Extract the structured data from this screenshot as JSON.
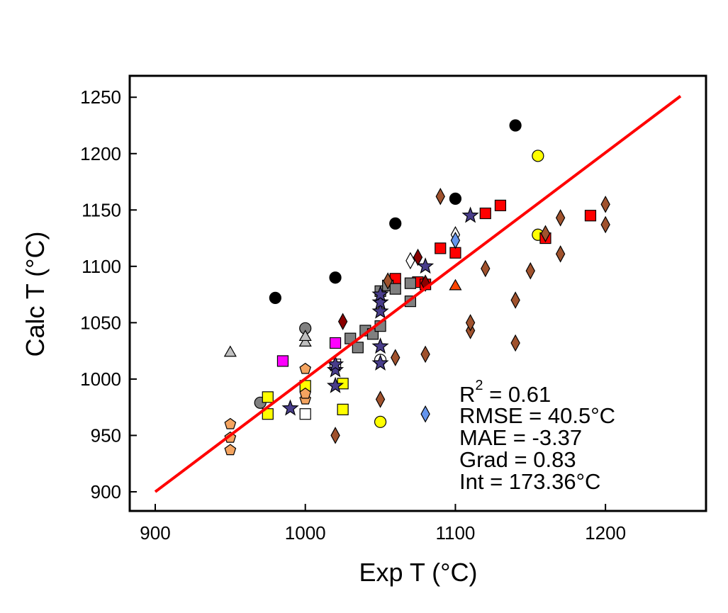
{
  "chart_data": {
    "type": "scatter",
    "title": "",
    "xlabel": "Exp T (°C)",
    "ylabel": "Calc T (°C)",
    "xlim": [
      883,
      1267
    ],
    "ylim": [
      883,
      1269
    ],
    "xticks": [
      900,
      1000,
      1100,
      1200
    ],
    "yticks": [
      900,
      950,
      1000,
      1050,
      1100,
      1150,
      1200,
      1250
    ],
    "grid": false,
    "legend": "none",
    "fit_line": {
      "color": "#ff0000",
      "x": [
        900,
        1250
      ],
      "y": [
        900,
        1251
      ]
    },
    "stats": {
      "r2_base": "R",
      "r2_sup": "2",
      "r2_value": " = 0.61",
      "rmse": "RMSE = 40.5°C",
      "mae": "MAE = -3.37",
      "grad": "Grad = 0.83",
      "int": "Int = 173.36°C"
    },
    "series": [
      {
        "marker": "circle",
        "fill": "#000000",
        "points": [
          [
            980,
            1072
          ],
          [
            1020,
            1090
          ],
          [
            1060,
            1138
          ],
          [
            1100,
            1160
          ],
          [
            1140,
            1225
          ]
        ]
      },
      {
        "marker": "circle",
        "fill": "#ffff00",
        "points": [
          [
            1050,
            962
          ],
          [
            1155,
            1128
          ],
          [
            1155,
            1198
          ]
        ]
      },
      {
        "marker": "circle",
        "fill": "#808080",
        "points": [
          [
            970,
            979
          ],
          [
            1000,
            1045
          ]
        ]
      },
      {
        "marker": "circle",
        "fill": "#ffffff",
        "points": [
          [
            1050,
            1017
          ]
        ]
      },
      {
        "marker": "square",
        "fill": "#ff0000",
        "points": [
          [
            1060,
            1089
          ],
          [
            1075,
            1086
          ],
          [
            1080,
            1084
          ],
          [
            1090,
            1116
          ],
          [
            1100,
            1112
          ],
          [
            1120,
            1147
          ],
          [
            1130,
            1154
          ],
          [
            1160,
            1125
          ],
          [
            1190,
            1145
          ]
        ]
      },
      {
        "marker": "square",
        "fill": "#808080",
        "points": [
          [
            1030,
            1036
          ],
          [
            1035,
            1028
          ],
          [
            1040,
            1043
          ],
          [
            1045,
            1040
          ],
          [
            1050,
            1047
          ],
          [
            1050,
            1078
          ],
          [
            1055,
            1083
          ],
          [
            1060,
            1080
          ],
          [
            1070,
            1069
          ],
          [
            1070,
            1085
          ]
        ]
      },
      {
        "marker": "square",
        "fill": "#ffff00",
        "points": [
          [
            975,
            969
          ],
          [
            975,
            984
          ],
          [
            1000,
            994
          ],
          [
            1025,
            973
          ],
          [
            1025,
            996
          ]
        ]
      },
      {
        "marker": "square",
        "fill": "#ff00ff",
        "points": [
          [
            985,
            1016
          ],
          [
            1020,
            1032
          ]
        ]
      },
      {
        "marker": "square",
        "fill": "#ffffff",
        "points": [
          [
            1000,
            969
          ],
          [
            1020,
            1013
          ]
        ]
      },
      {
        "marker": "triangle",
        "fill": "#c0c0c0",
        "points": [
          [
            950,
            1024
          ],
          [
            1000,
            1033
          ],
          [
            1000,
            1038
          ]
        ]
      },
      {
        "marker": "triangle",
        "fill": "#ff4500",
        "points": [
          [
            1100,
            1083
          ]
        ]
      },
      {
        "marker": "diamond",
        "fill": "#a0522d",
        "points": [
          [
            1020,
            950
          ],
          [
            1050,
            982
          ],
          [
            1055,
            1087
          ],
          [
            1060,
            1019
          ],
          [
            1080,
            1022
          ],
          [
            1090,
            1162
          ],
          [
            1110,
            1043
          ],
          [
            1110,
            1050
          ],
          [
            1120,
            1098
          ],
          [
            1140,
            1032
          ],
          [
            1140,
            1070
          ],
          [
            1150,
            1096
          ],
          [
            1160,
            1129
          ],
          [
            1170,
            1111
          ],
          [
            1170,
            1143
          ],
          [
            1200,
            1137
          ],
          [
            1200,
            1155
          ]
        ]
      },
      {
        "marker": "diamond",
        "fill": "#8b0000",
        "points": [
          [
            1025,
            1051
          ],
          [
            1075,
            1108
          ],
          [
            1080,
            1085
          ]
        ]
      },
      {
        "marker": "diamond",
        "fill": "#ffffff",
        "points": [
          [
            1070,
            1105
          ],
          [
            1100,
            1128
          ]
        ]
      },
      {
        "marker": "diamond",
        "fill": "#6495ed",
        "points": [
          [
            1080,
            969
          ],
          [
            1100,
            1123
          ]
        ]
      },
      {
        "marker": "star",
        "fill": "#483d8b",
        "points": [
          [
            990,
            974
          ],
          [
            1020,
            994
          ],
          [
            1020,
            1008
          ],
          [
            1020,
            1013
          ],
          [
            1050,
            1014
          ],
          [
            1050,
            1029
          ],
          [
            1050,
            1060
          ],
          [
            1050,
            1068
          ],
          [
            1050,
            1075
          ],
          [
            1080,
            1100
          ],
          [
            1110,
            1145
          ]
        ]
      },
      {
        "marker": "pentagon",
        "fill": "#f4a460",
        "points": [
          [
            950,
            937
          ],
          [
            950,
            948
          ],
          [
            950,
            960
          ],
          [
            1000,
            982
          ],
          [
            1000,
            987
          ],
          [
            1000,
            1009
          ]
        ]
      }
    ]
  }
}
